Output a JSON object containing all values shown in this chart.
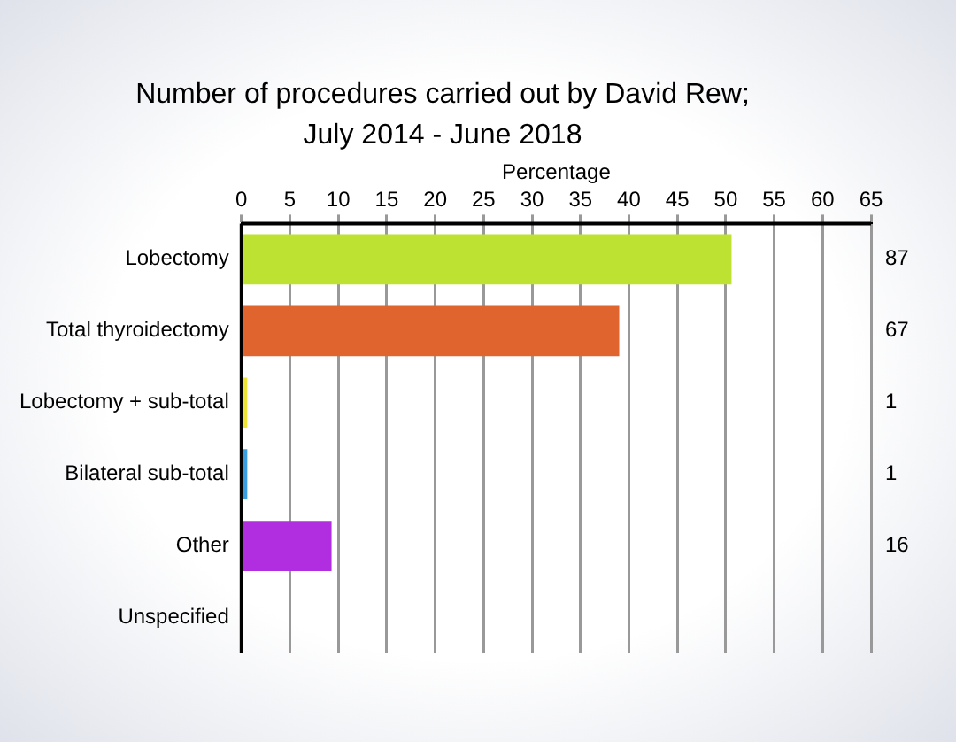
{
  "chart_data": {
    "type": "bar",
    "orientation": "horizontal",
    "title": "Number of procedures carried out by David Rew;",
    "subtitle": "July 2014 - June 2018",
    "xlabel": "Percentage",
    "categories": [
      "Lobectomy",
      "Total thyroidectomy",
      "Lobectomy + sub-total",
      "Bilateral sub-total",
      "Other",
      "Unspecified"
    ],
    "values": [
      50.6,
      39.0,
      0.6,
      0.6,
      9.3,
      0.2
    ],
    "colors": [
      "#bde232",
      "#e0642e",
      "#eee436",
      "#3a9fe0",
      "#b02ee0",
      "#e0306a"
    ],
    "annotations": [
      "87",
      "67",
      "1",
      "1",
      "16"
    ],
    "xlim": [
      0,
      65
    ],
    "xticks": [
      0,
      5,
      10,
      15,
      20,
      25,
      30,
      35,
      40,
      45,
      50,
      55,
      60,
      65
    ],
    "grid": "x",
    "legend": false
  }
}
